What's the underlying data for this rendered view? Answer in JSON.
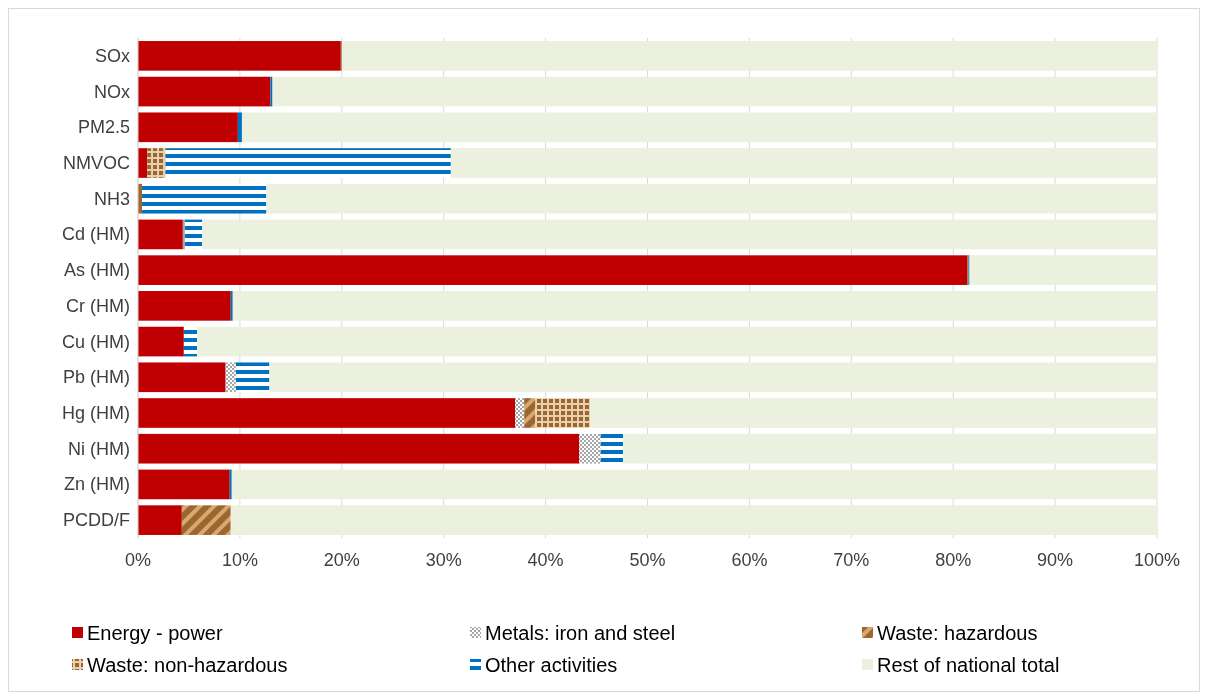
{
  "chart_data": {
    "type": "bar",
    "orientation": "horizontal",
    "stacked": true,
    "categories": [
      "SOx",
      "NOx",
      "PM2.5",
      "NMVOC",
      "NH3",
      "Cd (HM)",
      "As (HM)",
      "Cr (HM)",
      "Cu (HM)",
      "Pb (HM)",
      "Hg (HM)",
      "Ni (HM)",
      "Zn (HM)",
      "PCDD/F"
    ],
    "series": [
      {
        "name": "Energy - power",
        "color": "#c00000",
        "values": [
          19.9,
          13.0,
          9.8,
          0.9,
          0,
          4.4,
          81.4,
          9.1,
          4.5,
          8.6,
          37.0,
          43.3,
          9.0,
          4.3
        ]
      },
      {
        "name": "Metals: iron and steel",
        "color": "#a6a6a6",
        "values": [
          0,
          0,
          0,
          0,
          0,
          0.2,
          0,
          0,
          0,
          1.0,
          0.9,
          2.1,
          0,
          0
        ]
      },
      {
        "name": "Waste: hazardous",
        "color": "#9c6630",
        "values": [
          0.1,
          0,
          0,
          0,
          0,
          0,
          0.1,
          0,
          0,
          0,
          1.1,
          0,
          0,
          4.8
        ]
      },
      {
        "name": "Waste: non-hazardous",
        "color": "#9c6630",
        "values": [
          0,
          0,
          0,
          1.8,
          0.4,
          0,
          0,
          0,
          0,
          0,
          5.4,
          0,
          0,
          0
        ]
      },
      {
        "name": "Other activities",
        "color": "#0070c0",
        "values": [
          0,
          0.2,
          0.4,
          28.0,
          12.2,
          1.7,
          0.1,
          0.2,
          1.3,
          3.3,
          0,
          2.2,
          0.2,
          0
        ]
      },
      {
        "name": "Rest of national total",
        "color": "#ebf1de",
        "values": [
          80.0,
          86.8,
          89.8,
          69.3,
          87.4,
          93.7,
          18.4,
          90.7,
          94.2,
          87.1,
          55.6,
          52.4,
          90.8,
          90.9
        ]
      }
    ],
    "xlim": [
      0,
      100
    ],
    "xticks": [
      {
        "value": 0,
        "label": "0%"
      },
      {
        "value": 10,
        "label": "10%"
      },
      {
        "value": 20,
        "label": "20%"
      },
      {
        "value": 30,
        "label": "30%"
      },
      {
        "value": 40,
        "label": "40%"
      },
      {
        "value": 50,
        "label": "50%"
      },
      {
        "value": 60,
        "label": "60%"
      },
      {
        "value": 70,
        "label": "70%"
      },
      {
        "value": 80,
        "label": "80%"
      },
      {
        "value": 90,
        "label": "90%"
      },
      {
        "value": 100,
        "label": "100%"
      }
    ],
    "grid": "x",
    "legend": "bottom"
  }
}
